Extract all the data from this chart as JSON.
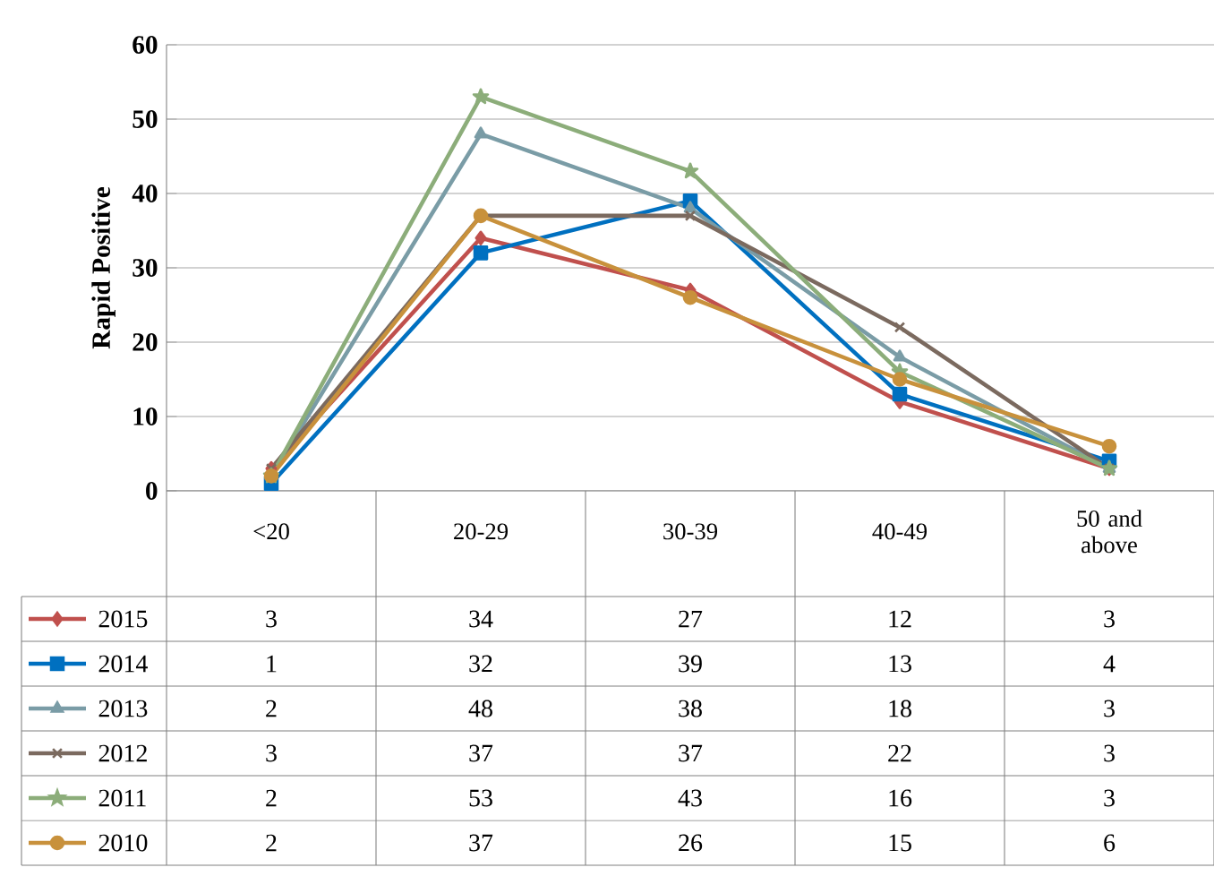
{
  "chart_data": {
    "type": "line",
    "ylabel": "Rapid Positive",
    "categories": [
      "<20",
      "20-29",
      "30-39",
      "40-49",
      "50 and above"
    ],
    "series": [
      {
        "name": "2015",
        "color": "#c0504d",
        "marker": "diamond",
        "values": [
          3,
          34,
          27,
          12,
          3
        ]
      },
      {
        "name": "2014",
        "color": "#0070c0",
        "marker": "square",
        "values": [
          1,
          32,
          39,
          13,
          4
        ]
      },
      {
        "name": "2013",
        "color": "#7a9ca6",
        "marker": "triangle",
        "values": [
          2,
          48,
          38,
          18,
          3
        ]
      },
      {
        "name": "2012",
        "color": "#7b6a5f",
        "marker": "cross",
        "values": [
          3,
          37,
          37,
          22,
          3
        ]
      },
      {
        "name": "2011",
        "color": "#8cad7a",
        "marker": "star",
        "values": [
          2,
          53,
          43,
          16,
          3
        ]
      },
      {
        "name": "2010",
        "color": "#c8913c",
        "marker": "circle",
        "values": [
          2,
          37,
          26,
          15,
          6
        ]
      }
    ],
    "ylim": [
      0,
      60
    ],
    "yticks": [
      0,
      10,
      20,
      30,
      40,
      50,
      60
    ],
    "grid": "y",
    "legend": "bottom left",
    "data_labels": true
  }
}
